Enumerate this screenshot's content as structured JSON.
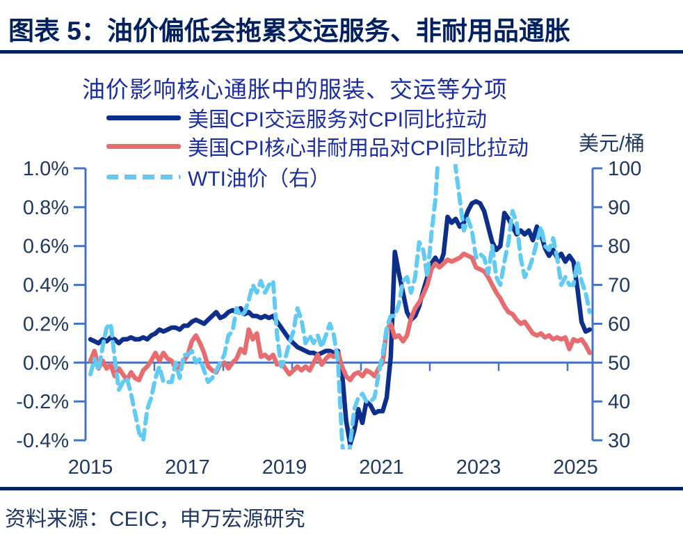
{
  "header": {
    "title": "图表 5：油价偏低会拖累交运服务、非耐用品通胀"
  },
  "footer": {
    "source": "资料来源：CEIC，申万宏源研究"
  },
  "chart_data": {
    "type": "line",
    "title": "油价影响核心通胀中的服装、交运等分项",
    "right_axis_title": "美元/桶",
    "xlabel": "",
    "legend_position": "top-left",
    "grid": false,
    "x_range": [
      2014.9,
      2025.31
    ],
    "left_ylim": [
      -0.4,
      1.0
    ],
    "right_ylim": [
      30,
      100
    ],
    "left_ticks": [
      "1.0%",
      "0.8%",
      "0.6%",
      "0.4%",
      "0.2%",
      "0.0%",
      "-0.2%",
      "-0.4%"
    ],
    "right_ticks": [
      "100",
      "90",
      "80",
      "70",
      "60",
      "50",
      "40",
      "30"
    ],
    "x_ticks": [
      "2015",
      "2017",
      "2019",
      "2021",
      "2023",
      "2025"
    ],
    "colors": {
      "header_navy": "#002060",
      "text_blue": "#1B2FA3",
      "label_navy": "#1F3864",
      "spine_blue": "#4472C4",
      "transport_line": "#0D2E8B",
      "nondurables_line": "#E66C70",
      "wti_line": "#62CBF3"
    },
    "series": [
      {
        "name": "美国CPI交运服务对CPI同比拉动",
        "axis": "left",
        "unit": "%",
        "color": "#0D2E8B",
        "style": "solid",
        "start_year": 2015,
        "monthly_values": [
          0.12,
          0.11,
          0.1,
          0.12,
          0.11,
          0.13,
          0.12,
          0.1,
          0.12,
          0.12,
          0.13,
          0.12,
          0.12,
          0.13,
          0.12,
          0.14,
          0.15,
          0.17,
          0.16,
          0.17,
          0.18,
          0.18,
          0.17,
          0.19,
          0.19,
          0.21,
          0.22,
          0.21,
          0.2,
          0.22,
          0.24,
          0.26,
          0.23,
          0.24,
          0.26,
          0.27,
          0.26,
          0.28,
          0.25,
          0.26,
          0.24,
          0.24,
          0.23,
          0.24,
          0.23,
          0.24,
          0.21,
          0.18,
          0.15,
          0.12,
          0.1,
          0.08,
          0.07,
          0.06,
          0.05,
          0.05,
          0.04,
          0.05,
          0.06,
          0.06,
          0.05,
          0.06,
          -0.05,
          -0.3,
          -0.42,
          -0.35,
          -0.24,
          -0.31,
          -0.2,
          -0.22,
          -0.26,
          -0.25,
          -0.25,
          -0.18,
          0.03,
          0.57,
          0.46,
          0.36,
          0.26,
          0.22,
          0.24,
          0.29,
          0.37,
          0.44,
          0.51,
          0.54,
          0.5,
          0.56,
          0.75,
          0.72,
          0.74,
          0.7,
          0.72,
          0.78,
          0.82,
          0.83,
          0.82,
          0.78,
          0.7,
          0.62,
          0.58,
          0.6,
          0.77,
          0.74,
          0.7,
          0.66,
          0.68,
          0.66,
          0.68,
          0.63,
          0.7,
          0.66,
          0.59,
          0.55,
          0.58,
          0.54,
          0.56,
          0.52,
          0.55,
          0.52,
          0.38,
          0.21,
          0.16,
          0.17
        ]
      },
      {
        "name": "美国CPI核心非耐用品对CPI同比拉动",
        "axis": "left",
        "unit": "%",
        "color": "#E66C70",
        "style": "solid",
        "start_year": 2015,
        "monthly_values": [
          0.01,
          0.06,
          -0.03,
          0.01,
          -0.03,
          -0.01,
          -0.07,
          -0.03,
          -0.06,
          -0.09,
          -0.05,
          -0.08,
          -0.09,
          -0.04,
          -0.02,
          0.01,
          0.05,
          0.01,
          0.05,
          0.02,
          0.01,
          -0.03,
          -0.02,
          0.01,
          0.04,
          0.11,
          0.14,
          0.1,
          0.05,
          -0.02,
          -0.04,
          -0.05,
          -0.01,
          0.0,
          -0.03,
          0.0,
          0.02,
          0.07,
          0.05,
          0.17,
          0.12,
          0.15,
          0.03,
          0.04,
          0.02,
          0.04,
          -0.01,
          0.0,
          -0.03,
          -0.06,
          -0.04,
          -0.02,
          -0.04,
          -0.02,
          -0.04,
          0.0,
          0.04,
          -0.01,
          0.02,
          0.04,
          0.03,
          0.05,
          -0.02,
          -0.07,
          -0.09,
          -0.06,
          -0.05,
          -0.07,
          -0.04,
          -0.05,
          -0.07,
          -0.03,
          0.0,
          0.17,
          0.2,
          0.13,
          0.14,
          0.11,
          0.14,
          0.23,
          0.28,
          0.31,
          0.35,
          0.4,
          0.48,
          0.51,
          0.49,
          0.51,
          0.53,
          0.52,
          0.53,
          0.54,
          0.56,
          0.55,
          0.54,
          0.49,
          0.48,
          0.47,
          0.44,
          0.4,
          0.36,
          0.33,
          0.29,
          0.26,
          0.25,
          0.22,
          0.2,
          0.21,
          0.18,
          0.15,
          0.14,
          0.15,
          0.13,
          0.14,
          0.12,
          0.13,
          0.12,
          0.13,
          0.07,
          0.12,
          0.11,
          0.12,
          0.09,
          0.05
        ]
      },
      {
        "name": "WTI油价（右）",
        "axis": "right",
        "unit": "美元/桶",
        "color": "#62CBF3",
        "style": "dashed",
        "start_year": 2015,
        "monthly_values": [
          47,
          51,
          48,
          54,
          59,
          60,
          51,
          43,
          45,
          46,
          42,
          37,
          32,
          30,
          38,
          41,
          46,
          49,
          45,
          45,
          45,
          50,
          46,
          52,
          52,
          53,
          50,
          51,
          48,
          45,
          46,
          48,
          50,
          52,
          57,
          58,
          64,
          62,
          63,
          66,
          70,
          68,
          71,
          68,
          70,
          71,
          57,
          49,
          51,
          55,
          58,
          64,
          61,
          55,
          57,
          55,
          57,
          54,
          57,
          60,
          57,
          50,
          30,
          17,
          29,
          38,
          41,
          42,
          40,
          40,
          41,
          47,
          52,
          59,
          62,
          62,
          65,
          71,
          72,
          68,
          72,
          81,
          79,
          72,
          83,
          92,
          108,
          102,
          110,
          114,
          100,
          92,
          84,
          87,
          84,
          77,
          78,
          77,
          73,
          80,
          72,
          70,
          76,
          81,
          89,
          86,
          77,
          72,
          74,
          77,
          81,
          85,
          80,
          79,
          82,
          77,
          70,
          72,
          70,
          70,
          76,
          71,
          68,
          63
        ]
      }
    ]
  }
}
